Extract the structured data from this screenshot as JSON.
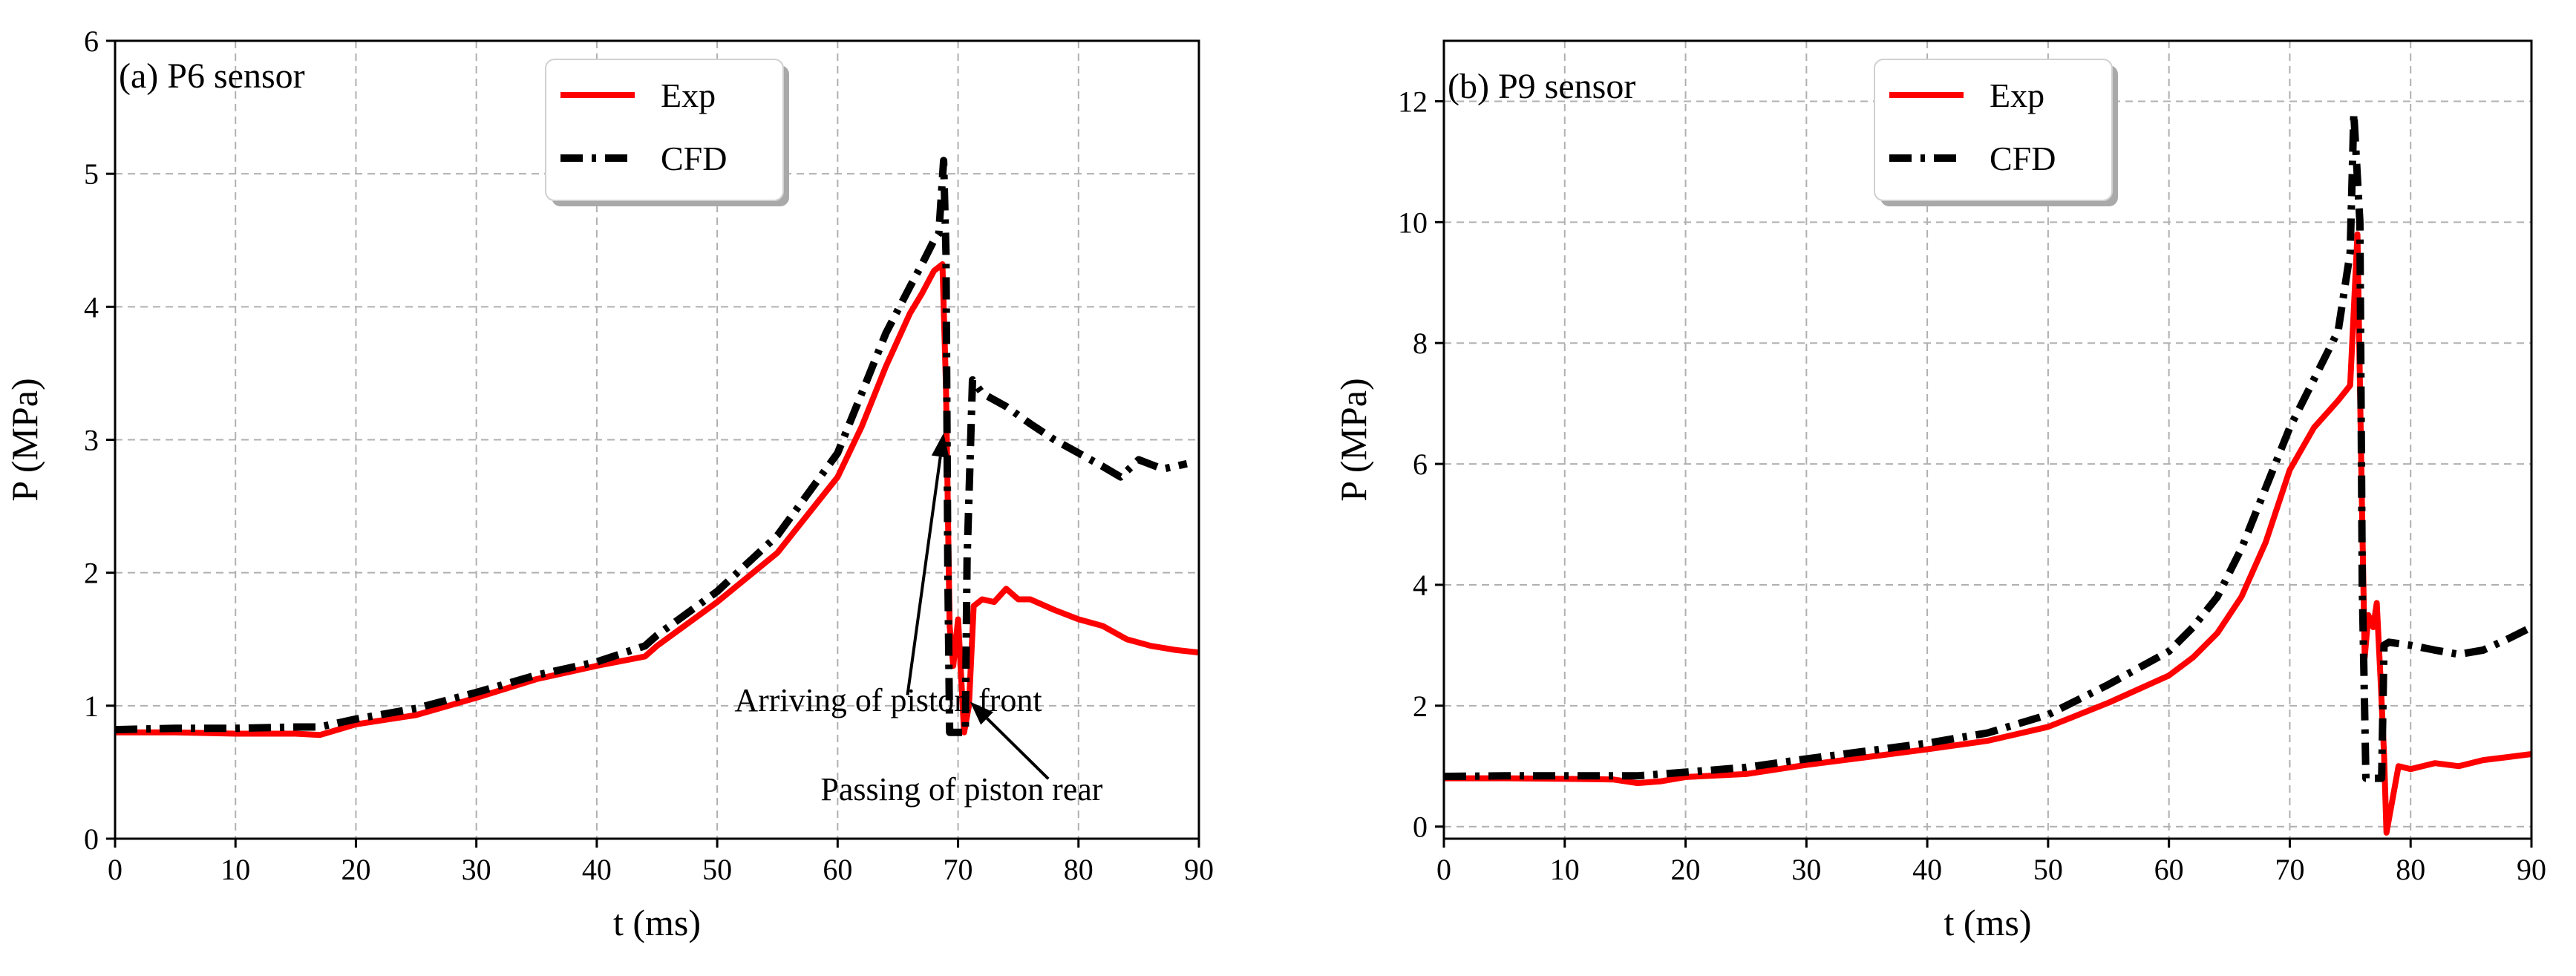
{
  "chart_data": [
    {
      "type": "line",
      "title": "(a) P6 sensor",
      "xlabel": "t (ms)",
      "ylabel": "P (MPa)",
      "xlim": [
        0,
        90
      ],
      "ylim": [
        0,
        6
      ],
      "xticks": [
        0,
        10,
        20,
        30,
        40,
        50,
        60,
        70,
        80,
        90
      ],
      "yticks": [
        0,
        1,
        2,
        3,
        4,
        5,
        6
      ],
      "grid": true,
      "legend": "top-center",
      "series": [
        {
          "name": "Exp",
          "color": "#ff0000",
          "style": "solid",
          "x": [
            0,
            5,
            10,
            15,
            17,
            20,
            25,
            30,
            35,
            40,
            44,
            45,
            50,
            55,
            60,
            62,
            64,
            66,
            67,
            68,
            68.7,
            69.0,
            69.3,
            69.6,
            70.0,
            70.5,
            70.9,
            71.3,
            72,
            73,
            74,
            75,
            76,
            78,
            80,
            82,
            84,
            86,
            88,
            90
          ],
          "y": [
            0.8,
            0.8,
            0.79,
            0.79,
            0.78,
            0.86,
            0.93,
            1.06,
            1.2,
            1.3,
            1.37,
            1.45,
            1.78,
            2.15,
            2.72,
            3.1,
            3.55,
            3.95,
            4.1,
            4.27,
            4.32,
            3.4,
            1.6,
            1.3,
            1.65,
            0.8,
            1.0,
            1.75,
            1.8,
            1.78,
            1.88,
            1.8,
            1.8,
            1.72,
            1.65,
            1.6,
            1.5,
            1.45,
            1.42,
            1.4
          ]
        },
        {
          "name": "CFD",
          "color": "#000000",
          "style": "dashdot",
          "x": [
            0,
            5,
            10,
            15,
            17,
            20,
            25,
            30,
            35,
            40,
            44,
            45,
            50,
            55,
            60,
            62,
            64,
            66,
            67,
            68,
            68.4,
            68.8,
            69.0,
            69.15,
            69.3,
            70.6,
            70.75,
            71.2,
            72,
            74,
            76,
            78,
            80,
            82,
            83.5,
            85,
            87,
            89
          ],
          "y": [
            0.82,
            0.83,
            0.83,
            0.84,
            0.84,
            0.9,
            0.98,
            1.1,
            1.23,
            1.33,
            1.45,
            1.53,
            1.86,
            2.28,
            2.9,
            3.35,
            3.8,
            4.15,
            4.32,
            4.5,
            4.55,
            5.1,
            4.4,
            2.0,
            0.8,
            0.8,
            2.1,
            3.45,
            3.35,
            3.25,
            3.12,
            3.0,
            2.9,
            2.8,
            2.72,
            2.85,
            2.78,
            2.82
          ]
        }
      ],
      "annotations": [
        {
          "text": "Arriving of piston front",
          "xy": [
            68.8,
            3.05
          ],
          "xytext": [
            64.2,
            1.05
          ]
        },
        {
          "text": "Passing of piston rear",
          "xy": [
            71.0,
            1.03
          ],
          "xytext": [
            70.3,
            0.38
          ]
        }
      ]
    },
    {
      "type": "line",
      "title": "(b) P9 sensor",
      "xlabel": "t (ms)",
      "ylabel": "P (MPa)",
      "xlim": [
        0,
        90
      ],
      "ylim": [
        -0.2,
        13
      ],
      "xticks": [
        0,
        10,
        20,
        30,
        40,
        50,
        60,
        70,
        80,
        90
      ],
      "yticks": [
        0,
        2,
        4,
        6,
        8,
        10,
        12
      ],
      "grid": true,
      "legend": "top-center",
      "series": [
        {
          "name": "Exp",
          "color": "#ff0000",
          "style": "solid",
          "x": [
            0,
            5,
            10,
            14,
            16,
            18,
            20,
            25,
            30,
            35,
            40,
            45,
            50,
            55,
            60,
            62,
            64,
            66,
            68,
            70,
            72,
            74,
            75,
            75.6,
            76.0,
            76.2,
            76.5,
            76.9,
            77.2,
            77.5,
            77.8,
            78,
            79,
            80,
            82,
            84,
            86,
            88,
            90
          ],
          "y": [
            0.8,
            0.8,
            0.79,
            0.78,
            0.72,
            0.75,
            0.82,
            0.87,
            1.02,
            1.15,
            1.28,
            1.42,
            1.65,
            2.05,
            2.5,
            2.8,
            3.2,
            3.8,
            4.7,
            5.9,
            6.6,
            7.05,
            7.3,
            9.8,
            5.0,
            2.8,
            3.5,
            3.3,
            3.7,
            2.5,
            1.2,
            -0.1,
            1.0,
            0.95,
            1.05,
            1.0,
            1.1,
            1.15,
            1.2
          ]
        },
        {
          "name": "CFD",
          "color": "#000000",
          "style": "dashdot",
          "x": [
            0,
            5,
            10,
            15,
            16,
            20,
            25,
            30,
            35,
            40,
            45,
            50,
            55,
            60,
            62,
            64,
            66,
            68,
            70,
            72,
            74,
            75,
            75.3,
            75.8,
            76.0,
            76.3,
            77.6,
            77.8,
            78.2,
            80,
            82,
            84,
            86,
            88,
            90
          ],
          "y": [
            0.83,
            0.84,
            0.84,
            0.84,
            0.84,
            0.9,
            0.98,
            1.12,
            1.25,
            1.38,
            1.55,
            1.85,
            2.35,
            2.9,
            3.3,
            3.8,
            4.6,
            5.6,
            6.6,
            7.4,
            8.2,
            9.5,
            11.8,
            10.0,
            4.0,
            0.8,
            0.8,
            3.0,
            3.05,
            3.0,
            2.92,
            2.85,
            2.92,
            3.1,
            3.3
          ]
        }
      ],
      "annotations": []
    }
  ]
}
